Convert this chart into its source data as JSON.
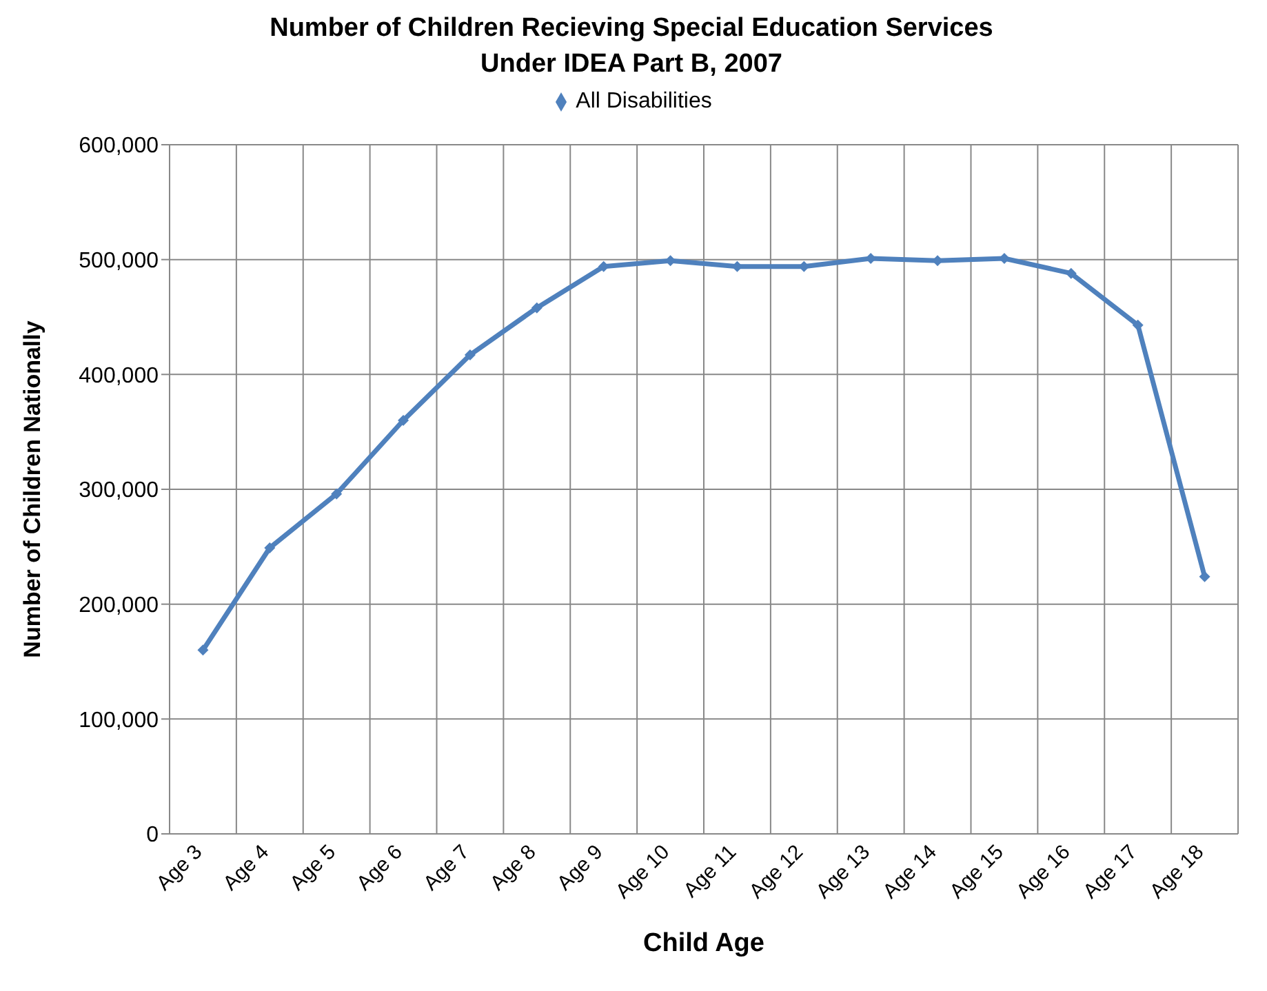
{
  "chart_data": {
    "type": "line",
    "title": "Number of Children Recieving Special Education Services\nUnder IDEA Part B, 2007",
    "xlabel": "Child Age",
    "ylabel": "Number of Children Nationally",
    "categories": [
      "Age 3",
      "Age 4",
      "Age 5",
      "Age 6",
      "Age 7",
      "Age 8",
      "Age 9",
      "Age 10",
      "Age 11",
      "Age 12",
      "Age 13",
      "Age 14",
      "Age 15",
      "Age 16",
      "Age 17",
      "Age 18"
    ],
    "series": [
      {
        "name": "All Disabilities",
        "color": "#4f81bd",
        "values": [
          160000,
          249000,
          296000,
          360000,
          417000,
          458000,
          494000,
          499000,
          494000,
          494000,
          501000,
          499000,
          501000,
          488000,
          443000,
          224000
        ]
      }
    ],
    "ylim": [
      0,
      600000
    ],
    "yticks": [
      0,
      {
        "value": 100000,
        "label": "100,000"
      },
      {
        "value": 200000,
        "label": "200,000"
      },
      {
        "value": 300000,
        "label": "300,000"
      },
      {
        "value": 400000,
        "label": "400,000"
      },
      {
        "value": 500000,
        "label": "500,000"
      },
      {
        "value": 600000,
        "label": "600,000"
      }
    ],
    "grid": true,
    "legend": "top",
    "marker": "diamond",
    "line_style": "solid"
  }
}
